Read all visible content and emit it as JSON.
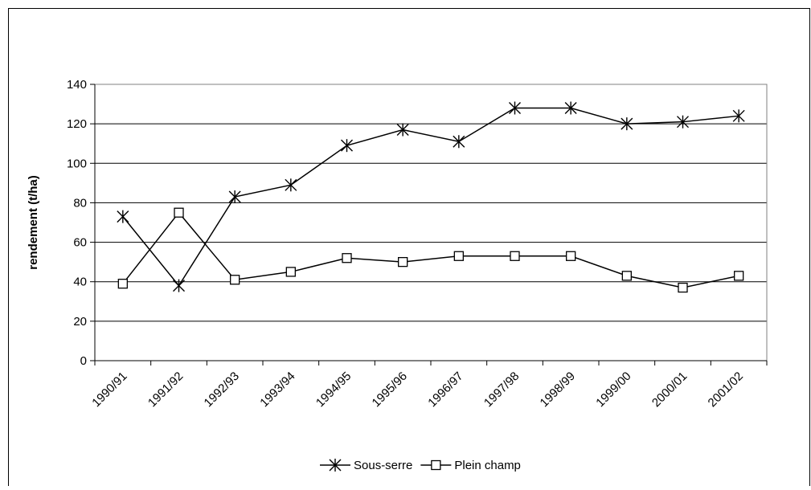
{
  "chart_data": {
    "type": "line",
    "title": "",
    "xlabel": "",
    "ylabel": "rendement (t/ha)",
    "ylim": [
      0,
      140
    ],
    "yticks": [
      0,
      20,
      40,
      60,
      80,
      100,
      120,
      140
    ],
    "y_tick_labels": [
      "0",
      "20",
      "40",
      "60",
      "80",
      "100",
      "120",
      "140"
    ],
    "grid": "horizontal",
    "legend_position": "bottom",
    "categories": [
      "1990/91",
      "1991/92",
      "1992/93",
      "1993/94",
      "1994/95",
      "1995/96",
      "1996/97",
      "1997/98",
      "1998/99",
      "1999/00",
      "2000/01",
      "2001/02"
    ],
    "series": [
      {
        "name": "Sous-serre",
        "marker": "asterisk",
        "color": "#000000",
        "values": [
          73,
          38,
          83,
          89,
          109,
          117,
          111,
          128,
          128,
          120,
          121,
          124
        ]
      },
      {
        "name": "Plein champ",
        "marker": "square",
        "color": "#000000",
        "values": [
          39,
          75,
          41,
          45,
          52,
          50,
          53,
          53,
          53,
          43,
          37,
          43
        ]
      }
    ]
  }
}
